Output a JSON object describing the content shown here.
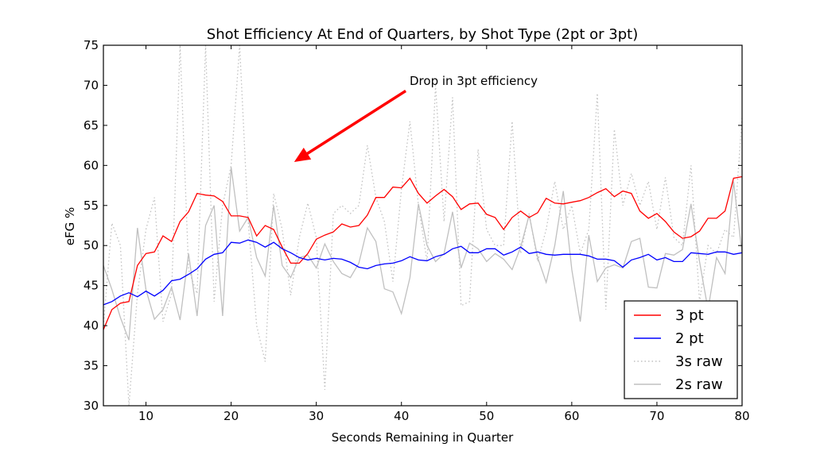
{
  "chart_data": {
    "type": "line",
    "title": "Shot Efficiency At End of Quarters, by Shot Type (2pt or 3pt)",
    "xlabel": "Seconds Remaining in Quarter",
    "ylabel": "eFG %",
    "xlim": [
      5,
      80
    ],
    "ylim": [
      30,
      75
    ],
    "xticks": [
      10,
      20,
      30,
      40,
      50,
      60,
      70,
      80
    ],
    "yticks": [
      30,
      35,
      40,
      45,
      50,
      55,
      60,
      65,
      70,
      75
    ],
    "grid": false,
    "legend_position": "lower-right",
    "annotation": {
      "text": "Drop in 3pt efficiency",
      "text_at": [
        41,
        70
      ],
      "arrow_to": [
        27.5,
        60.5
      ],
      "arrow_from": [
        40.5,
        69.3
      ],
      "color": "#ff0000"
    },
    "x": [
      5,
      6,
      7,
      8,
      9,
      10,
      11,
      12,
      13,
      14,
      15,
      16,
      17,
      18,
      19,
      20,
      21,
      22,
      23,
      24,
      25,
      26,
      27,
      28,
      29,
      30,
      31,
      32,
      33,
      34,
      35,
      36,
      37,
      38,
      39,
      40,
      41,
      42,
      43,
      44,
      45,
      46,
      47,
      48,
      49,
      50,
      51,
      52,
      53,
      54,
      55,
      56,
      57,
      58,
      59,
      60,
      61,
      62,
      63,
      64,
      65,
      66,
      67,
      68,
      69,
      70,
      71,
      72,
      73,
      74,
      75,
      76,
      77,
      78,
      79,
      80
    ],
    "series": [
      {
        "name": "3 pt",
        "color": "#ff0000",
        "style": "solid",
        "values": [
          39.5,
          42.0,
          42.8,
          43.0,
          47.5,
          49.0,
          49.2,
          51.2,
          50.5,
          53.0,
          54.2,
          56.5,
          56.3,
          56.2,
          55.5,
          53.7,
          53.7,
          53.5,
          51.2,
          52.5,
          52.0,
          49.8,
          47.8,
          47.8,
          49.0,
          50.8,
          51.3,
          51.7,
          52.7,
          52.3,
          52.5,
          53.8,
          56.0,
          56.0,
          57.3,
          57.2,
          58.4,
          56.5,
          55.3,
          56.2,
          57.0,
          56.1,
          54.5,
          55.2,
          55.3,
          53.9,
          53.5,
          52.0,
          53.5,
          54.3,
          53.5,
          54.1,
          55.9,
          55.3,
          55.2,
          55.4,
          55.6,
          56.0,
          56.6,
          57.1,
          56.1,
          56.8,
          56.5,
          54.3,
          53.4,
          54.0,
          53.0,
          51.7,
          50.9,
          51.1,
          51.8,
          53.4,
          53.4,
          54.3,
          58.4,
          58.6
        ]
      },
      {
        "name": "2 pt",
        "color": "#0000ff",
        "style": "solid",
        "values": [
          42.6,
          43.0,
          43.7,
          44.1,
          43.6,
          44.3,
          43.7,
          44.4,
          45.6,
          45.8,
          46.4,
          47.1,
          48.3,
          48.9,
          49.1,
          50.4,
          50.3,
          50.7,
          50.4,
          49.8,
          50.4,
          49.6,
          49.1,
          48.5,
          48.2,
          48.4,
          48.2,
          48.4,
          48.3,
          47.9,
          47.3,
          47.1,
          47.5,
          47.7,
          47.8,
          48.1,
          48.6,
          48.2,
          48.1,
          48.6,
          48.9,
          49.6,
          49.9,
          49.1,
          49.1,
          49.6,
          49.6,
          48.8,
          49.2,
          49.8,
          49.0,
          49.2,
          48.9,
          48.8,
          48.9,
          48.9,
          48.9,
          48.7,
          48.3,
          48.3,
          48.1,
          47.3,
          48.2,
          48.5,
          48.9,
          48.2,
          48.5,
          48.0,
          48.0,
          49.1,
          49.0,
          48.9,
          49.2,
          49.2,
          48.9,
          49.1
        ]
      },
      {
        "name": "3s raw",
        "color": "#c0c0c0",
        "style": "dotted",
        "values": [
          40.0,
          52.8,
          50.0,
          30.0,
          44.0,
          52.0,
          56.0,
          40.5,
          44.0,
          75.0,
          47.0,
          44.0,
          75.0,
          43.0,
          55.0,
          60.0,
          75.0,
          53.0,
          40.0,
          35.5,
          56.5,
          52.0,
          43.8,
          51.0,
          55.3,
          51.0,
          32.0,
          54.0,
          55.0,
          54.0,
          55.0,
          62.5,
          56.0,
          53.0,
          45.5,
          57.0,
          65.5,
          55.0,
          48.0,
          70.0,
          53.0,
          68.5,
          42.5,
          43.0,
          62.0,
          52.0,
          50.0,
          50.0,
          65.5,
          49.0,
          54.0,
          48.0,
          52.0,
          58.0,
          52.0,
          55.0,
          49.0,
          52.0,
          69.0,
          42.0,
          64.5,
          55.0,
          59.0,
          55.0,
          58.0,
          52.0,
          58.5,
          51.0,
          50.0,
          60.0,
          43.0,
          50.0,
          49.0,
          52.0,
          51.0,
          66.0
        ]
      },
      {
        "name": "2s raw",
        "color": "#c0c0c0",
        "style": "solid",
        "values": [
          47.5,
          44.5,
          41.0,
          38.2,
          52.2,
          44.5,
          40.8,
          42.0,
          44.8,
          40.7,
          49.0,
          41.2,
          52.5,
          55.0,
          41.2,
          59.8,
          51.8,
          53.5,
          48.5,
          46.2,
          55.0,
          47.5,
          46.0,
          48.5,
          48.8,
          47.2,
          50.2,
          48.0,
          46.5,
          46.0,
          47.8,
          52.2,
          50.5,
          44.6,
          44.2,
          41.5,
          46.0,
          55.2,
          50.0,
          48.0,
          49.0,
          54.2,
          47.2,
          50.3,
          49.6,
          48.0,
          49.0,
          48.3,
          47.0,
          49.8,
          53.8,
          48.5,
          45.4,
          50.0,
          56.8,
          47.0,
          40.5,
          51.3,
          45.5,
          47.2,
          47.6,
          47.2,
          50.5,
          50.9,
          44.8,
          44.7,
          49.0,
          48.8,
          49.5,
          55.2,
          48.0,
          42.0,
          48.5,
          46.5,
          58.0,
          49.0
        ]
      }
    ]
  }
}
